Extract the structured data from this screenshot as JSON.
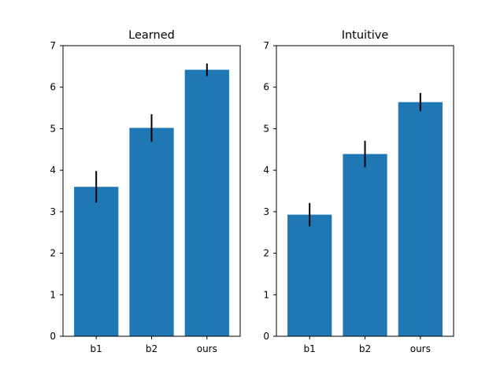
{
  "chart_data": [
    {
      "type": "bar",
      "title": "Learned",
      "categories": [
        "b1",
        "b2",
        "ours"
      ],
      "values": [
        3.6,
        5.02,
        6.42
      ],
      "errors": [
        0.38,
        0.33,
        0.15
      ],
      "ylim": [
        0,
        7
      ],
      "yticks": [
        "0",
        "1",
        "2",
        "3",
        "4",
        "5",
        "6",
        "7"
      ],
      "xlabel": "",
      "ylabel": "",
      "bar_color": "#1f77b4",
      "error_color": "#000000",
      "grid": false
    },
    {
      "type": "bar",
      "title": "Intuitive",
      "categories": [
        "b1",
        "b2",
        "ours"
      ],
      "values": [
        2.93,
        4.39,
        5.64
      ],
      "errors": [
        0.28,
        0.32,
        0.22
      ],
      "ylim": [
        0,
        7
      ],
      "yticks": [
        "0",
        "1",
        "2",
        "3",
        "4",
        "5",
        "6",
        "7"
      ],
      "xlabel": "",
      "ylabel": "",
      "bar_color": "#1f77b4",
      "error_color": "#000000",
      "grid": false
    }
  ]
}
